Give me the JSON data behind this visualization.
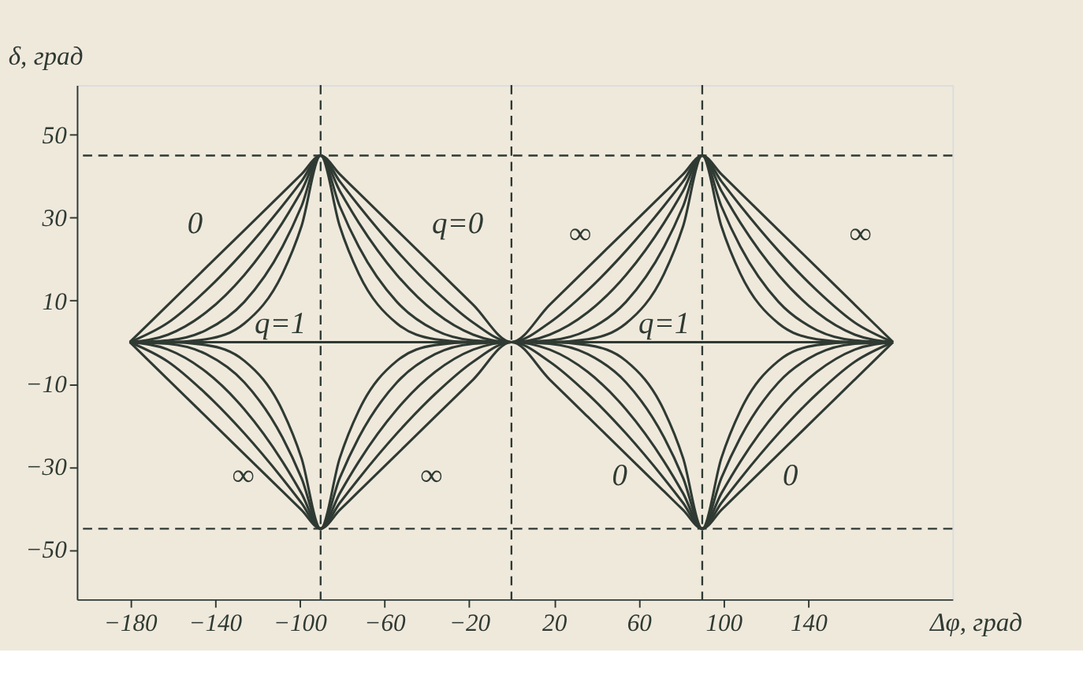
{
  "chart_data": {
    "type": "line",
    "xlabel": "Δφ, град",
    "ylabel": "δ, град",
    "xlim": [
      -205,
      208
    ],
    "ylim": [
      -62,
      62
    ],
    "xticks": [
      -180,
      -140,
      -100,
      -60,
      -20,
      20,
      60,
      100,
      140
    ],
    "yticks": [
      -50,
      -30,
      -10,
      10,
      30,
      50
    ],
    "marker": "none",
    "line_style": "solid",
    "x": [
      -180,
      -162,
      -144,
      -126,
      -108,
      -99,
      -90,
      -81,
      -72,
      -54,
      -36,
      -18,
      0,
      18,
      36,
      54,
      72,
      81,
      90,
      99,
      108,
      126,
      144,
      162,
      180
    ],
    "series": [
      {
        "color": "#2f3a33",
        "values": [
          0,
          9,
          18,
          27,
          36,
          40.5,
          45,
          40.5,
          36,
          27,
          18,
          9,
          0,
          9,
          18,
          27,
          36,
          40.5,
          45,
          40.5,
          36,
          27,
          18,
          9,
          0
        ]
      },
      {
        "color": "#2f3a33",
        "values": [
          0,
          4.7,
          12.5,
          22,
          32.9,
          38.8,
          45,
          38.8,
          32.9,
          22,
          12.5,
          4.7,
          0,
          4.7,
          12.5,
          22,
          32.9,
          38.8,
          45,
          38.8,
          32.9,
          22,
          12.5,
          4.7,
          0
        ]
      },
      {
        "color": "#2f3a33",
        "values": [
          0,
          1.8,
          7.2,
          16.2,
          28.8,
          36.5,
          45,
          36.5,
          28.8,
          16.2,
          7.2,
          1.8,
          0,
          1.8,
          7.2,
          16.2,
          28.8,
          36.5,
          45,
          36.5,
          28.8,
          16.2,
          7.2,
          1.8,
          0
        ]
      },
      {
        "color": "#2f3a33",
        "values": [
          0,
          0.4,
          2.9,
          9.7,
          23,
          32.8,
          45,
          32.8,
          23,
          9.7,
          2.9,
          0.4,
          0,
          0.4,
          2.9,
          9.7,
          23,
          32.8,
          45,
          32.8,
          23,
          9.7,
          2.9,
          0.4,
          0
        ]
      },
      {
        "color": "#2f3a33",
        "values": [
          0,
          0,
          0.7,
          4.5,
          16.5,
          28,
          45,
          28,
          16.5,
          4.5,
          0.7,
          0,
          0,
          0,
          0.7,
          4.5,
          16.5,
          28,
          45,
          28,
          16.5,
          4.5,
          0.7,
          0,
          0
        ]
      },
      {
        "color": "#2f3a33",
        "values": [
          0,
          -9,
          -18,
          -27,
          -36,
          -40.5,
          -45,
          -40.5,
          -36,
          -27,
          -18,
          -9,
          0,
          -9,
          -18,
          -27,
          -36,
          -40.5,
          -45,
          -40.5,
          -36,
          -27,
          -18,
          -9,
          0
        ]
      },
      {
        "color": "#2f3a33",
        "values": [
          0,
          -4.7,
          -12.5,
          -22,
          -32.9,
          -38.8,
          -45,
          -38.8,
          -32.9,
          -22,
          -12.5,
          -4.7,
          0,
          -4.7,
          -12.5,
          -22,
          -32.9,
          -38.8,
          -45,
          -38.8,
          -32.9,
          -22,
          -12.5,
          -4.7,
          0
        ]
      },
      {
        "color": "#2f3a33",
        "values": [
          0,
          -1.8,
          -7.2,
          -16.2,
          -28.8,
          -36.5,
          -45,
          -36.5,
          -28.8,
          -16.2,
          -7.2,
          -1.8,
          0,
          -1.8,
          -7.2,
          -16.2,
          -28.8,
          -36.5,
          -45,
          -36.5,
          -28.8,
          -16.2,
          -7.2,
          -1.8,
          0
        ]
      },
      {
        "color": "#2f3a33",
        "values": [
          0,
          -0.4,
          -2.9,
          -9.7,
          -23,
          -32.8,
          -45,
          -32.8,
          -23,
          -9.7,
          -2.9,
          -0.4,
          0,
          -0.4,
          -2.9,
          -9.7,
          -23,
          -32.8,
          -45,
          -32.8,
          -23,
          -9.7,
          -2.9,
          -0.4,
          0
        ]
      },
      {
        "color": "#2f3a33",
        "values": [
          0,
          0,
          -0.7,
          -4.5,
          -16.5,
          -28,
          -45,
          -28,
          -16.5,
          -4.5,
          -0.7,
          0,
          0,
          0,
          -0.7,
          -4.5,
          -16.5,
          -28,
          -45,
          -28,
          -16.5,
          -4.5,
          -0.7,
          0,
          0
        ]
      },
      {
        "color": "#2f3a33",
        "values": [
          0,
          0,
          0,
          0,
          0,
          0,
          0,
          0,
          0,
          0,
          0,
          0,
          0,
          0,
          0,
          0,
          0,
          0,
          0,
          0,
          0,
          0,
          0,
          0,
          0
        ]
      }
    ],
    "ref_lines": [
      {
        "axis": "x",
        "value": -90,
        "line_style": "dashed",
        "color": "#2f3a33"
      },
      {
        "axis": "x",
        "value": 0,
        "line_style": "dashed",
        "color": "#2f3a33"
      },
      {
        "axis": "x",
        "value": 90,
        "line_style": "dashed",
        "color": "#2f3a33"
      },
      {
        "axis": "y",
        "value": 45,
        "line_style": "dashed",
        "color": "#2f3a33"
      },
      {
        "axis": "y",
        "value": -45,
        "line_style": "dashed",
        "color": "#2f3a33"
      }
    ],
    "annotations": [
      "0",
      "q=0",
      "∞",
      "∞",
      {
        "text": "q=1",
        "x": -109,
        "y": 0
      },
      {
        "text": "q=1",
        "x": 72,
        "y": 0
      },
      "∞",
      "∞",
      "0",
      "0"
    ]
  }
}
